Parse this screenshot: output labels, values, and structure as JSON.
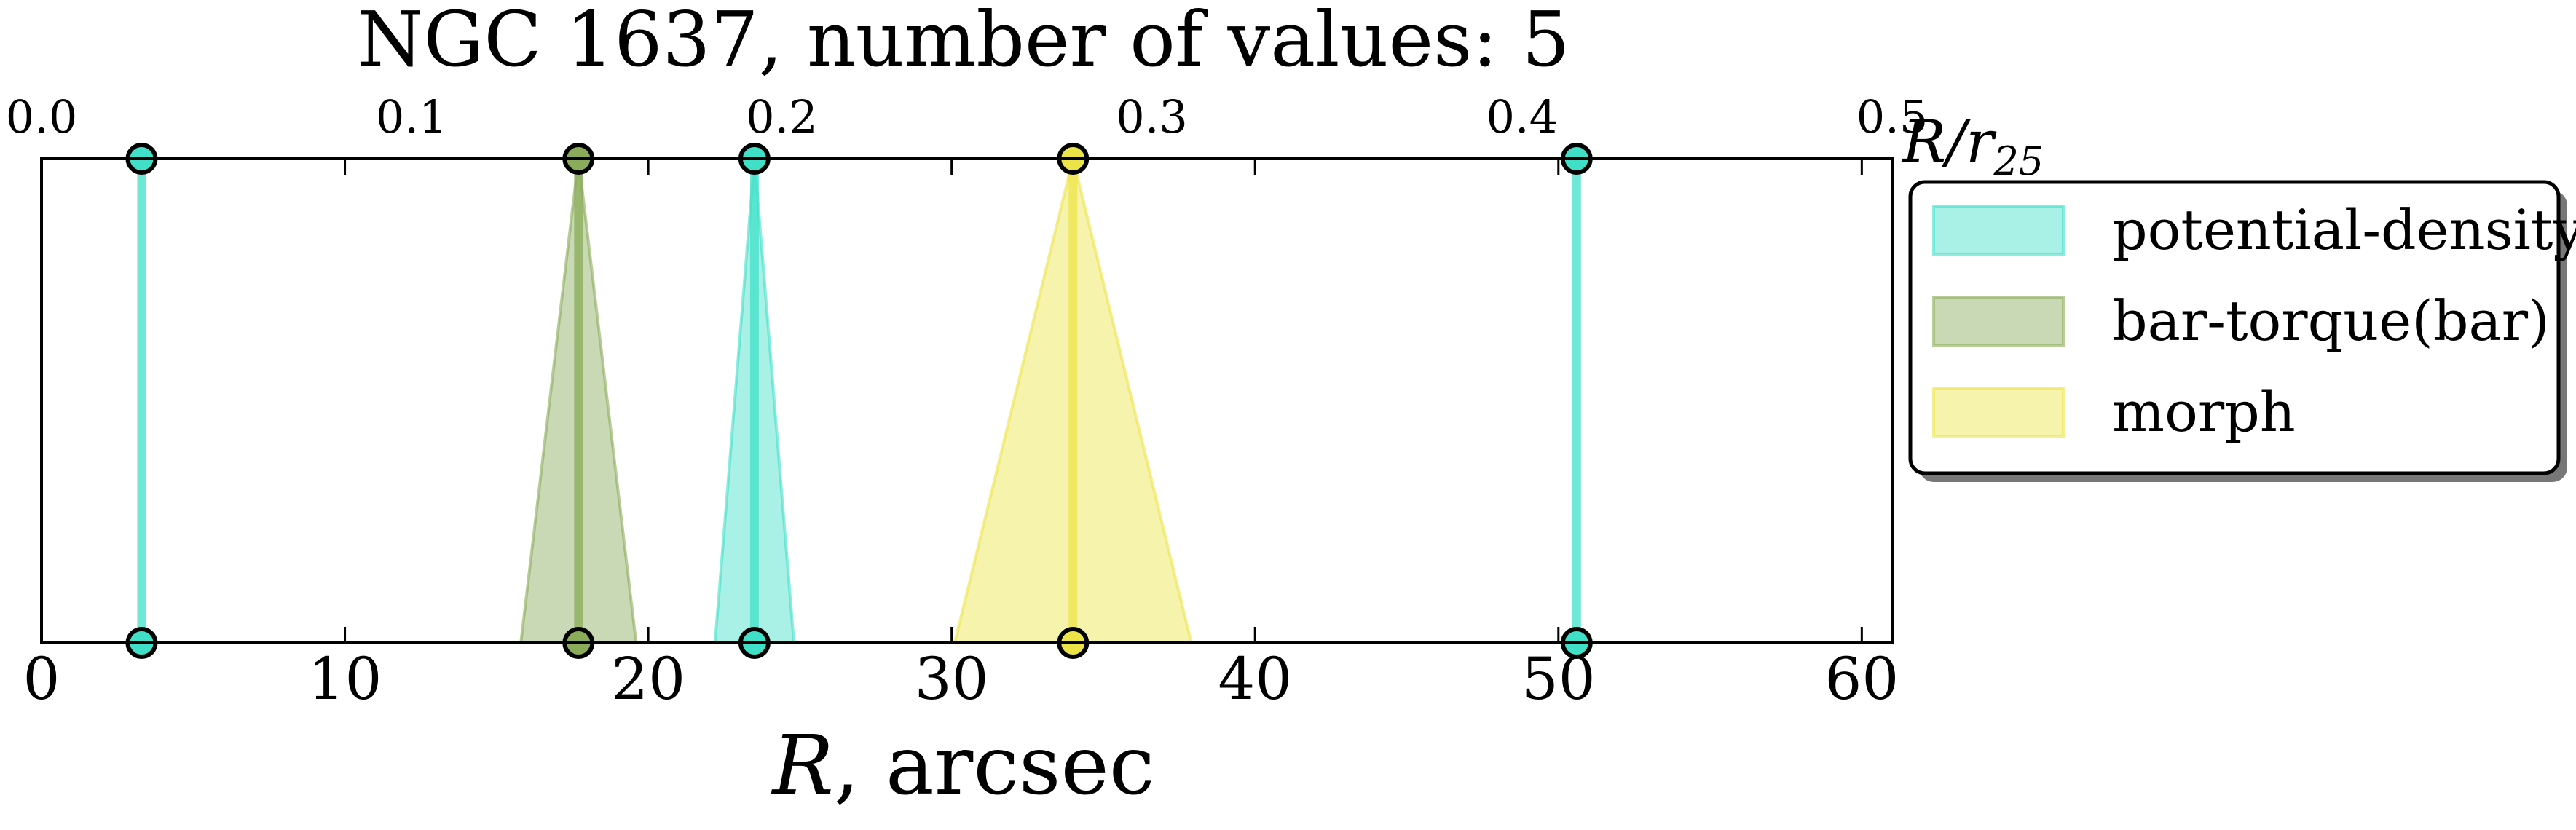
{
  "chart_data": {
    "type": "scatter",
    "title": "NGC 1637, number of values: 5",
    "xlabel_italic": "R",
    "xlabel_rest": ", arcsec",
    "xlim": [
      0,
      61
    ],
    "xticks": [
      0,
      10,
      20,
      30,
      40,
      50,
      60
    ],
    "xtick_labels": [
      "0",
      "10",
      "20",
      "30",
      "40",
      "50",
      "60"
    ],
    "top_axis": {
      "label_main": "R/r",
      "label_sub": "25",
      "xlim": [
        0.0,
        0.5
      ],
      "ticks": [
        0.0,
        0.1,
        0.2,
        0.3,
        0.4,
        0.5
      ],
      "tick_labels": [
        "0.0",
        "0.1",
        "0.2",
        "0.3",
        "0.4",
        "0.5"
      ]
    },
    "grid": false,
    "legend_position": "outside-right",
    "legend": [
      {
        "label": "potential-density",
        "color": "#40e0c8"
      },
      {
        "label": "bar-torque(bar)",
        "color": "#8aab5a"
      },
      {
        "label": "morph",
        "color": "#ece447"
      }
    ],
    "series": [
      {
        "name": "potential-density",
        "color": "#40e0c8",
        "values": [
          3.3,
          23.5,
          50.6
        ],
        "errors": [
          0,
          1.3,
          0
        ]
      },
      {
        "name": "bar-torque(bar)",
        "color": "#8aab5a",
        "values": [
          17.7
        ],
        "errors": [
          1.9
        ]
      },
      {
        "name": "morph",
        "color": "#ece447",
        "values": [
          34.0
        ],
        "errors": [
          3.9
        ]
      }
    ]
  }
}
